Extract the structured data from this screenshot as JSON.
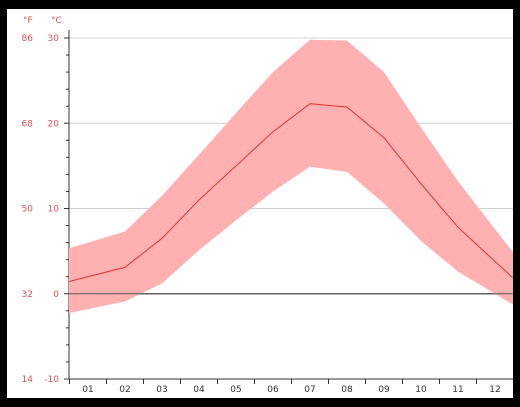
{
  "chart_data": {
    "type": "area",
    "title": "",
    "xlabel": "",
    "ylabel": "",
    "unit_left": "°F",
    "unit_right": "°C",
    "categories": [
      "01",
      "02",
      "03",
      "04",
      "05",
      "06",
      "07",
      "08",
      "09",
      "10",
      "11",
      "12"
    ],
    "y_ticks_c": [
      "30",
      "20",
      "10",
      "0",
      "-10"
    ],
    "y_ticks_f": [
      "86",
      "68",
      "50",
      "32",
      "14"
    ],
    "ylim": [
      -10,
      30
    ],
    "grid": true,
    "series": [
      {
        "values": [
          2.0,
          3.1,
          6.5,
          11.0,
          15.0,
          19.0,
          22.3,
          21.9,
          18.3,
          12.9,
          7.8,
          3.8
        ]
      },
      {
        "values": [
          6.0,
          7.3,
          11.5,
          16.3,
          21.2,
          26.0,
          29.8,
          29.7,
          26.0,
          19.5,
          13.2,
          7.6
        ]
      },
      {
        "values": [
          -1.8,
          -0.9,
          1.2,
          5.1,
          8.6,
          12.0,
          14.9,
          14.3,
          10.6,
          6.2,
          2.6,
          0.0
        ]
      }
    ],
    "colors": {
      "mean": "#e33b3b",
      "band": "#ffb1b1",
      "axis_labels": "#e15353"
    }
  }
}
